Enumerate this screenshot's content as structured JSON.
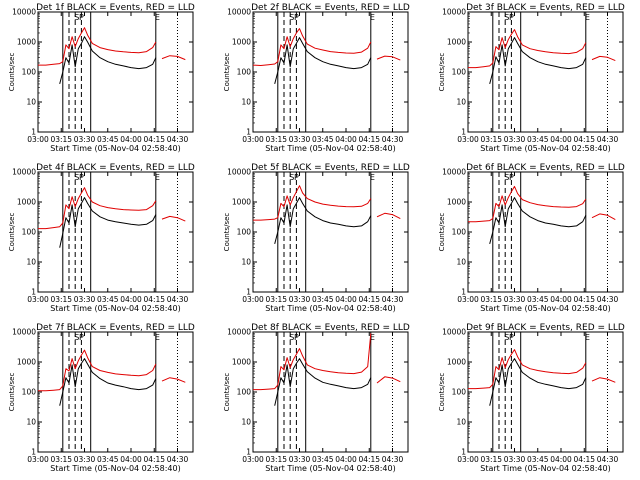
{
  "chart_data": {
    "type": "line",
    "y_scale": "log",
    "ylim": [
      1,
      10000
    ],
    "xlim": [
      "03:00",
      "04:40"
    ],
    "y_ticks": [
      "1",
      "10",
      "100",
      "1000",
      "10000"
    ],
    "x_ticks": [
      "03:00",
      "03:15",
      "03:30",
      "03:45",
      "04:00",
      "04:15",
      "04:30"
    ],
    "ylabel": "Counts/sec",
    "xlabel": "Start Time (05-Nov-04 02:58:40)",
    "series_colors": {
      "Events": "#000000",
      "LLD": "#e00000"
    },
    "interval_markers": {
      "solid": [
        "03:16",
        "03:34",
        "04:16"
      ],
      "dashed": [
        "03:20",
        "03:24",
        "03:28"
      ],
      "dotted": [
        "04:30"
      ],
      "labels": [
        {
          "time": "03:25",
          "text": "S"
        },
        {
          "time": "03:28",
          "text": "P"
        },
        {
          "time": "04:17",
          "text": "E"
        }
      ]
    },
    "x": [
      "03:00",
      "03:05",
      "03:10",
      "03:14",
      "03:16",
      "03:18",
      "03:20",
      "03:22",
      "03:24",
      "03:26",
      "03:28",
      "03:30",
      "03:32",
      "03:35",
      "03:40",
      "03:45",
      "03:50",
      "03:55",
      "04:00",
      "04:05",
      "04:10",
      "04:14",
      "04:16",
      "04:18",
      "04:20",
      "04:25",
      "04:30",
      "04:35"
    ],
    "panels": [
      {
        "title": "Det 1f BLACK = Events, RED = LLD",
        "series": [
          {
            "name": "Events",
            "values": [
              null,
              null,
              null,
              40,
              100,
              300,
              200,
              800,
              150,
              600,
              900,
              1500,
              1000,
              500,
              300,
              220,
              180,
              160,
              140,
              130,
              140,
              180,
              300,
              null,
              null,
              null,
              null,
              null
            ]
          },
          {
            "name": "LLD",
            "values": [
              170,
              170,
              180,
              190,
              220,
              800,
              600,
              1500,
              700,
              1300,
              2000,
              3000,
              1700,
              900,
              650,
              560,
              500,
              470,
              450,
              440,
              480,
              650,
              1000,
              null,
              280,
              350,
              330,
              260
            ]
          }
        ]
      },
      {
        "title": "Det 2f BLACK = Events, RED = LLD",
        "series": [
          {
            "name": "Events",
            "values": [
              null,
              null,
              null,
              40,
              100,
              300,
              200,
              800,
              150,
              600,
              900,
              1400,
              900,
              480,
              300,
              220,
              180,
              160,
              140,
              130,
              140,
              180,
              300,
              null,
              null,
              null,
              null,
              null
            ]
          },
          {
            "name": "LLD",
            "values": [
              170,
              165,
              175,
              185,
              220,
              800,
              600,
              1500,
              700,
              1300,
              2000,
              2800,
              1600,
              850,
              620,
              540,
              480,
              450,
              430,
              420,
              460,
              620,
              1000,
              null,
              270,
              340,
              320,
              250
            ]
          }
        ]
      },
      {
        "title": "Det 3f BLACK = Events, RED = LLD",
        "series": [
          {
            "name": "Events",
            "values": [
              null,
              null,
              null,
              40,
              100,
              320,
              200,
              800,
              160,
              600,
              900,
              1400,
              900,
              480,
              300,
              220,
              180,
              160,
              140,
              130,
              140,
              180,
              300,
              null,
              null,
              null,
              null,
              null
            ]
          },
          {
            "name": "LLD",
            "values": [
              140,
              140,
              150,
              160,
              200,
              700,
              550,
              1400,
              650,
              1200,
              1800,
              2600,
              1500,
              800,
              600,
              520,
              470,
              440,
              420,
              410,
              450,
              600,
              950,
              null,
              260,
              330,
              310,
              240
            ]
          }
        ]
      },
      {
        "title": "Det 4f BLACK = Events, RED = LLD",
        "series": [
          {
            "name": "Events",
            "values": [
              null,
              null,
              null,
              30,
              90,
              300,
              200,
              800,
              150,
              600,
              900,
              1400,
              900,
              500,
              320,
              250,
              220,
              200,
              180,
              170,
              180,
              240,
              380,
              null,
              null,
              null,
              null,
              null
            ]
          },
          {
            "name": "LLD",
            "values": [
              130,
              130,
              140,
              150,
              200,
              800,
              600,
              1500,
              700,
              1300,
              2000,
              3000,
              1700,
              1000,
              750,
              650,
              600,
              560,
              540,
              530,
              560,
              750,
              1100,
              null,
              270,
              330,
              300,
              230
            ]
          }
        ]
      },
      {
        "title": "Det 5f BLACK = Events, RED = LLD",
        "series": [
          {
            "name": "Events",
            "values": [
              null,
              null,
              null,
              40,
              100,
              300,
              200,
              800,
              150,
              600,
              900,
              1400,
              900,
              500,
              320,
              240,
              200,
              180,
              160,
              150,
              160,
              220,
              350,
              null,
              null,
              null,
              null,
              null
            ]
          },
          {
            "name": "LLD",
            "values": [
              250,
              250,
              260,
              270,
              300,
              900,
              700,
              1600,
              800,
              1400,
              2200,
              3500,
              2000,
              1300,
              1000,
              850,
              780,
              730,
              700,
              690,
              720,
              900,
              1300,
              null,
              320,
              420,
              380,
              280
            ]
          }
        ]
      },
      {
        "title": "Det 6f BLACK = Events, RED = LLD",
        "series": [
          {
            "name": "Events",
            "values": [
              null,
              null,
              null,
              40,
              100,
              300,
              200,
              800,
              150,
              600,
              900,
              1400,
              900,
              500,
              320,
              240,
              200,
              180,
              160,
              150,
              160,
              220,
              360,
              null,
              null,
              null,
              null,
              null
            ]
          },
          {
            "name": "LLD",
            "values": [
              220,
              220,
              230,
              240,
              280,
              900,
              700,
              1600,
              800,
              1400,
              2200,
              3300,
              1900,
              1200,
              950,
              820,
              750,
              700,
              680,
              670,
              700,
              880,
              1250,
              null,
              300,
              400,
              360,
              260
            ]
          }
        ]
      },
      {
        "title": "Det 7f BLACK = Events, RED = LLD",
        "series": [
          {
            "name": "Events",
            "values": [
              null,
              null,
              null,
              35,
              100,
              300,
              200,
              800,
              150,
              600,
              900,
              1300,
              850,
              450,
              280,
              200,
              170,
              150,
              130,
              120,
              130,
              170,
              280,
              null,
              null,
              null,
              null,
              null
            ]
          },
          {
            "name": "LLD",
            "values": [
              110,
              110,
              115,
              120,
              160,
              600,
              500,
              1300,
              600,
              1100,
              1700,
              2500,
              1400,
              700,
              520,
              450,
              400,
              380,
              360,
              350,
              380,
              520,
              850,
              null,
              230,
              300,
              270,
              210
            ]
          }
        ]
      },
      {
        "title": "Det 8f BLACK = Events, RED = LLD",
        "series": [
          {
            "name": "Events",
            "values": [
              null,
              null,
              null,
              35,
              100,
              300,
              200,
              800,
              150,
              600,
              900,
              1300,
              850,
              470,
              290,
              210,
              180,
              160,
              140,
              130,
              140,
              180,
              300,
              null,
              null,
              null,
              null,
              null
            ]
          },
          {
            "name": "LLD",
            "values": [
              120,
              120,
              125,
              130,
              170,
              700,
              550,
              1400,
              650,
              1200,
              1800,
              2800,
              1600,
              800,
              600,
              520,
              470,
              440,
              420,
              410,
              460,
              700,
              9000,
              null,
              200,
              320,
              290,
              220
            ]
          }
        ]
      },
      {
        "title": "Det 9f BLACK = Events, RED = LLD",
        "series": [
          {
            "name": "Events",
            "values": [
              null,
              null,
              null,
              35,
              100,
              300,
              200,
              800,
              150,
              600,
              900,
              1300,
              850,
              450,
              290,
              210,
              180,
              160,
              140,
              130,
              140,
              180,
              300,
              null,
              null,
              null,
              null,
              null
            ]
          },
          {
            "name": "LLD",
            "values": [
              130,
              130,
              135,
              140,
              180,
              700,
              550,
              1400,
              650,
              1200,
              1800,
              2600,
              1500,
              800,
              600,
              520,
              470,
              440,
              420,
              410,
              450,
              620,
              950,
              null,
              230,
              300,
              270,
              210
            ]
          }
        ]
      }
    ]
  }
}
